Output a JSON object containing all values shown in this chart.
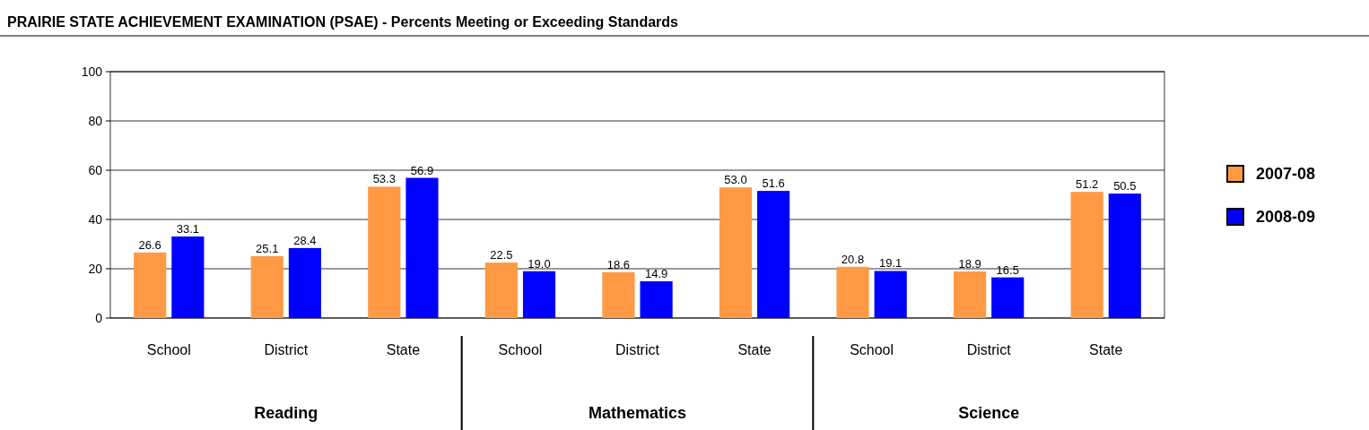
{
  "chart_data": {
    "type": "bar",
    "title": "PRAIRIE STATE ACHIEVEMENT EXAMINATION (PSAE) - Percents Meeting or Exceeding Standards",
    "categories": [
      "School",
      "District",
      "State",
      "School",
      "District",
      "State",
      "School",
      "District",
      "State"
    ],
    "series": [
      {
        "name": "2007-08",
        "color": "#ff9944",
        "values": [
          26.6,
          25.1,
          53.3,
          22.5,
          18.6,
          53.0,
          20.8,
          18.9,
          51.2
        ],
        "value_labels": [
          "26.6",
          "25.1",
          "53.3",
          "22.5",
          "18.6",
          "53.0",
          "20.8",
          "18.9",
          "51.2"
        ]
      },
      {
        "name": "2008-09",
        "color": "#0000ff",
        "values": [
          33.1,
          28.4,
          56.9,
          19.0,
          14.9,
          51.6,
          19.1,
          16.5,
          50.5
        ],
        "value_labels": [
          "33.1",
          "28.4",
          "56.9",
          "19.0",
          "14.9",
          "51.6",
          "19.1",
          "16.5",
          "50.5"
        ]
      }
    ],
    "annotations": [
      "Reading",
      "Mathematics",
      "Science"
    ],
    "ylim": [
      0,
      100
    ],
    "yticks": [
      0,
      20,
      40,
      60,
      80,
      100
    ],
    "grid": "y",
    "legend": "right"
  }
}
